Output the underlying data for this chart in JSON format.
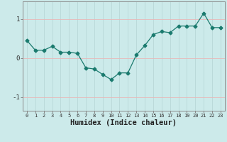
{
  "x": [
    0,
    1,
    2,
    3,
    4,
    5,
    6,
    7,
    8,
    9,
    10,
    11,
    12,
    13,
    14,
    15,
    16,
    17,
    18,
    19,
    20,
    21,
    22,
    23
  ],
  "y": [
    0.45,
    0.2,
    0.2,
    0.3,
    0.15,
    0.15,
    0.12,
    -0.25,
    -0.28,
    -0.42,
    -0.55,
    -0.38,
    -0.38,
    0.08,
    0.32,
    0.6,
    0.68,
    0.65,
    0.82,
    0.82,
    0.82,
    1.15,
    0.78,
    0.78
  ],
  "line_color": "#1a7a6e",
  "marker": "D",
  "marker_size": 2.5,
  "bg_color": "#cceaea",
  "grid_color_v": "#b8d8d8",
  "grid_color_h": "#e8b8b8",
  "xlabel": "Humidex (Indice chaleur)",
  "xlabel_fontsize": 7.5,
  "xlim": [
    -0.5,
    23.5
  ],
  "ylim": [
    -1.35,
    1.45
  ],
  "yticks": [
    -1,
    0,
    1
  ],
  "xticks": [
    0,
    1,
    2,
    3,
    4,
    5,
    6,
    7,
    8,
    9,
    10,
    11,
    12,
    13,
    14,
    15,
    16,
    17,
    18,
    19,
    20,
    21,
    22,
    23
  ]
}
